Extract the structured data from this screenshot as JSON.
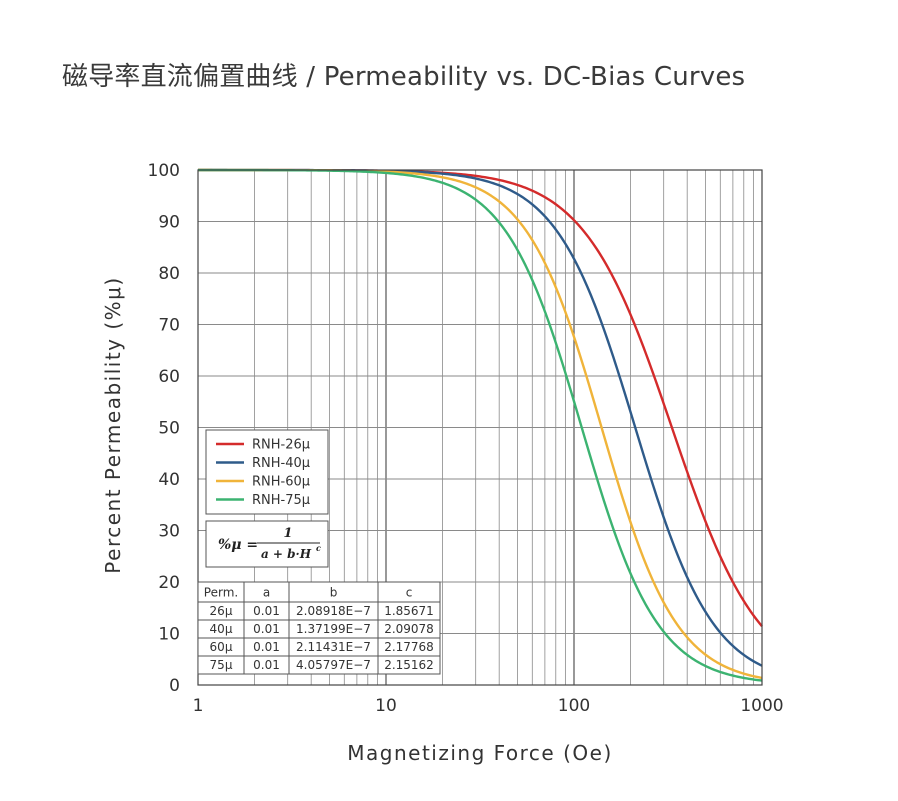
{
  "title": "磁导率直流偏置曲线 / Permeability vs. DC-Bias Curves",
  "chart_data": {
    "type": "line",
    "xscale": "log",
    "xlim": [
      1,
      1000
    ],
    "ylim": [
      0,
      100
    ],
    "xlabel": "Magnetizing Force (Oe)",
    "ylabel": "Percent Permeability (%μ)",
    "x_ticks": [
      "1",
      "10",
      "100",
      "1000"
    ],
    "y_ticks": [
      "0",
      "10",
      "20",
      "30",
      "40",
      "50",
      "60",
      "70",
      "80",
      "90",
      "100"
    ],
    "grid": true,
    "legend_position": "center-left",
    "formula": {
      "lhs": "%μ =",
      "numerator": "1",
      "denominator": "a + b·H",
      "exponent": "c"
    },
    "series": [
      {
        "name": "RNH-26μ",
        "color": "#d42b2b",
        "a": 0.01,
        "b": 2.08918e-07,
        "c": 1.85671
      },
      {
        "name": "RNH-40μ",
        "color": "#2f5b8a",
        "a": 0.01,
        "b": 1.37199e-07,
        "c": 2.09078
      },
      {
        "name": "RNH-60μ",
        "color": "#f0b43a",
        "a": 0.01,
        "b": 2.11431e-07,
        "c": 2.17768
      },
      {
        "name": "RNH-75μ",
        "color": "#3cb371",
        "a": 0.01,
        "b": 4.05797e-07,
        "c": 2.15162
      }
    ],
    "table": {
      "headers": [
        "Perm.",
        "a",
        "b",
        "c"
      ],
      "rows": [
        [
          "26μ",
          "0.01",
          "2.08918E−7",
          "1.85671"
        ],
        [
          "40μ",
          "0.01",
          "1.37199E−7",
          "2.09078"
        ],
        [
          "60μ",
          "0.01",
          "2.11431E−7",
          "2.17768"
        ],
        [
          "75μ",
          "0.01",
          "4.05797E−7",
          "2.15162"
        ]
      ]
    }
  }
}
